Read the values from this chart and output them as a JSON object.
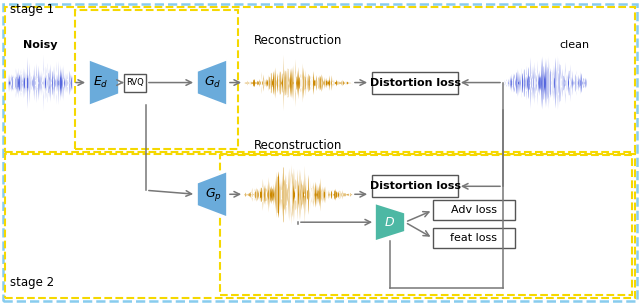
{
  "bg_color": "#ffffff",
  "noisy_label": "Noisy",
  "clean_label": "clean",
  "recon_label_1": "Reconstruction",
  "recon_label_2": "Reconstruction",
  "stage1_label": "stage 1",
  "stage2_label": "stage 2",
  "Ed_label": "$E_d$",
  "Gd_label": "$G_d$",
  "Gp_label": "$G_p$",
  "D_label": "$D$",
  "RVQ_label": "RVQ",
  "dist_loss_label": "Distortion loss",
  "dist_loss2_label": "Distortion loss",
  "adv_loss_label": "Adv loss",
  "feat_loss_label": "feat loss",
  "arrow_color": "#888888",
  "trapezoid_color_blue": "#6aabdb",
  "trapezoid_color_teal": "#4db8a4",
  "stage1_dash_color": "#f5d800",
  "stage2_dash_color": "#f5d800",
  "outer_dash_color": "#88ccee",
  "waveform_noisy_color": "#5566dd",
  "waveform_clean_color": "#5566dd",
  "waveform_recon_color": "#cc8800"
}
